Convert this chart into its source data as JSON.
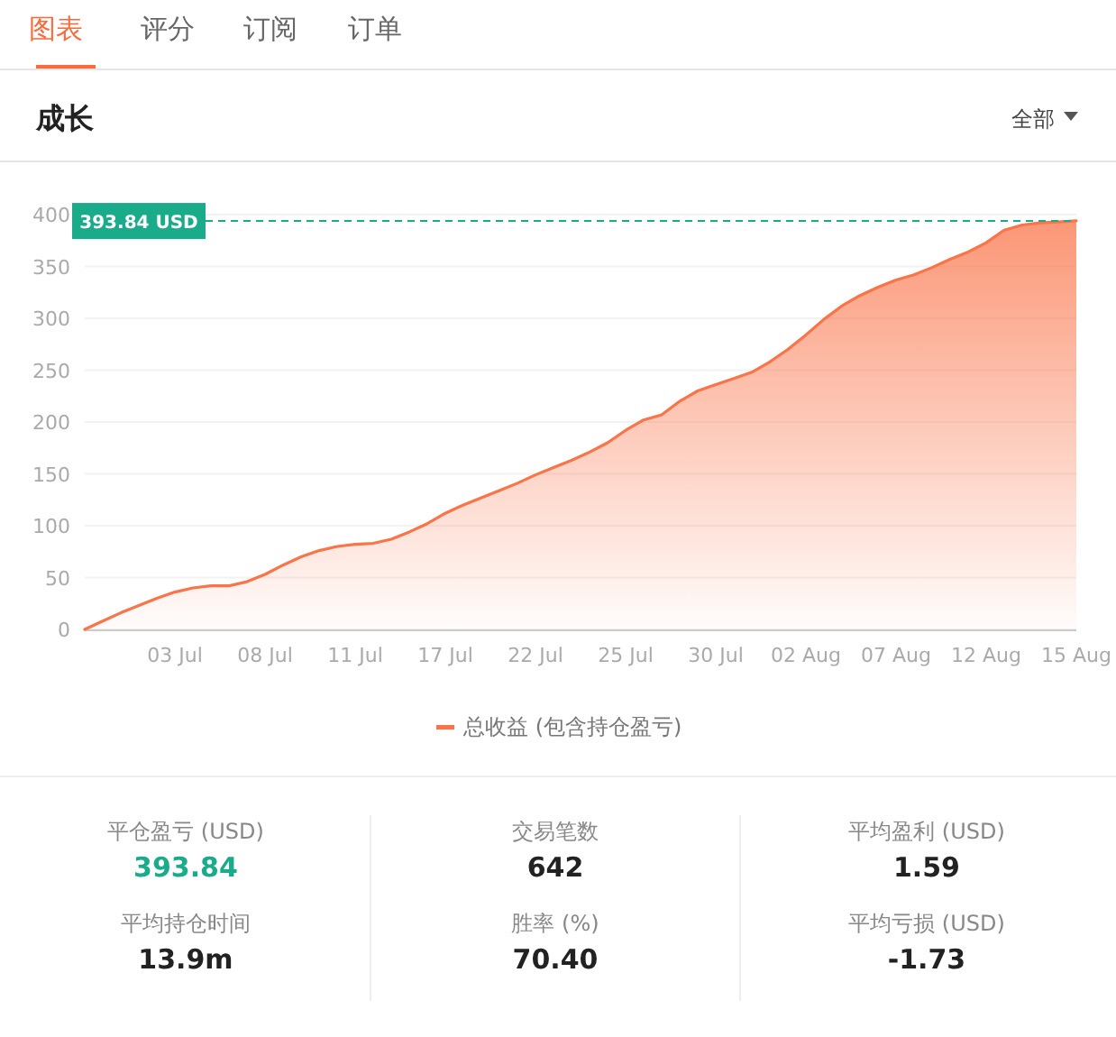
{
  "chart_data": {
    "type": "area",
    "title": "成长",
    "categories": [
      null,
      null,
      null,
      null,
      null,
      "03 Jul",
      null,
      null,
      null,
      null,
      "08 Jul",
      null,
      null,
      null,
      null,
      "11 Jul",
      null,
      null,
      null,
      null,
      "17 Jul",
      null,
      null,
      null,
      null,
      "22 Jul",
      null,
      null,
      null,
      null,
      "25 Jul",
      null,
      null,
      null,
      null,
      "30 Jul",
      null,
      null,
      null,
      null,
      "02 Aug",
      null,
      null,
      null,
      null,
      "07 Aug",
      null,
      null,
      null,
      null,
      "12 Aug",
      null,
      null,
      null,
      null,
      "15 Aug"
    ],
    "series": [
      {
        "name": "总收益 (包含持仓盈亏)",
        "color": "#fa7449",
        "values": [
          0,
          8,
          16,
          23,
          30,
          36,
          40,
          42,
          42,
          46,
          53,
          62,
          70,
          76,
          80,
          82,
          83,
          87,
          94,
          102,
          112,
          120,
          127,
          134,
          141,
          149,
          156,
          163,
          171,
          180,
          192,
          202,
          207,
          220,
          230,
          236,
          242,
          248,
          258,
          270,
          284,
          299,
          312,
          322,
          330,
          337,
          342,
          349,
          357,
          364,
          373,
          385,
          390,
          392,
          393,
          394
        ]
      }
    ],
    "ylim": [
      0,
      400
    ],
    "yticks": [
      0,
      50,
      100,
      150,
      200,
      250,
      300,
      350,
      400
    ],
    "grid": "y",
    "legend": "bottom",
    "marker": "none",
    "line_style": "solid",
    "ref_lines": [
      {
        "axis": "y",
        "value": 393.84,
        "label": "393.84 USD",
        "color": "#1aab8a",
        "line_style": "dashed"
      }
    ],
    "annotations": [
      "图表",
      "评分",
      "订阅",
      "订单",
      "全部",
      "平仓盈亏 (USD)",
      "393.84",
      "交易笔数",
      "642",
      "平均盈利 (USD)",
      "1.59",
      "平均持仓时间",
      "13.9m",
      "胜率 (%)",
      "70.40",
      "平均亏损 (USD)",
      "-1.73"
    ]
  }
}
